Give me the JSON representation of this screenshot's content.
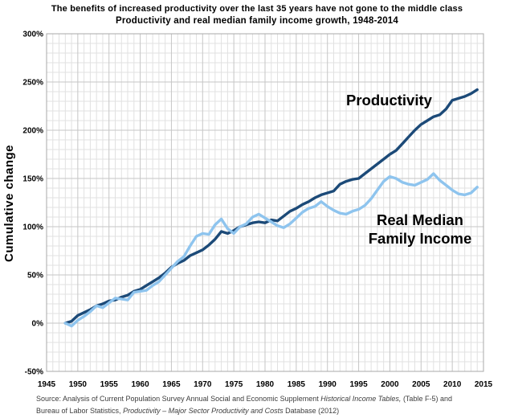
{
  "header": {
    "title_line1": "The benefits of increased productivity over the last 35 years have not gone to the middle class",
    "title_line2": "Productivity and real median family income growth, 1948-2014"
  },
  "y_axis": {
    "label": "Cumulative change",
    "tick_suffix": "%",
    "min": -50,
    "max": 300,
    "major_step": 50,
    "minor_step": 10
  },
  "x_axis": {
    "min": 1945,
    "max": 2015,
    "major_step": 5,
    "minor_step": 1
  },
  "series_labels": {
    "productivity": "Productivity",
    "income_line1": "Real Median",
    "income_line2": "Family Income"
  },
  "source": {
    "line1": [
      {
        "text": "Source:  Analysis of Current Population Survey Annual Social and Economic Supplement ",
        "italic": false
      },
      {
        "text": "Historical Income Tables,",
        "italic": true
      },
      {
        "text": " (Table F-5) and",
        "italic": false
      }
    ],
    "line2": [
      {
        "text": "Bureau of Labor Statistics, ",
        "italic": false
      },
      {
        "text": "Productivity – Major Sector Productivity and Costs",
        "italic": true
      },
      {
        "text": " Database (2012)",
        "italic": false
      }
    ]
  },
  "colors": {
    "productivity_line": "#1C4A78",
    "income_line": "#8EC4EE",
    "grid_minor": "#E1E1E1",
    "grid_major": "#C6C6C6",
    "frame": "#A9A9A9",
    "text": "#000000",
    "source_text": "#3D3D3D"
  },
  "chart_data": {
    "type": "line",
    "title": "Productivity and real median family income growth, 1948-2014",
    "xlabel": "",
    "ylabel": "Cumulative change",
    "xlim": [
      1945,
      2015
    ],
    "ylim": [
      -50,
      300
    ],
    "grid": true,
    "legend_position": "inline-annotations",
    "x": [
      1948,
      1949,
      1950,
      1951,
      1952,
      1953,
      1954,
      1955,
      1956,
      1957,
      1958,
      1959,
      1960,
      1961,
      1962,
      1963,
      1964,
      1965,
      1966,
      1967,
      1968,
      1969,
      1970,
      1971,
      1972,
      1973,
      1974,
      1975,
      1976,
      1977,
      1978,
      1979,
      1980,
      1981,
      1982,
      1983,
      1984,
      1985,
      1986,
      1987,
      1988,
      1989,
      1990,
      1991,
      1992,
      1993,
      1994,
      1995,
      1996,
      1997,
      1998,
      1999,
      2000,
      2001,
      2002,
      2003,
      2004,
      2005,
      2006,
      2007,
      2008,
      2009,
      2010,
      2011,
      2012,
      2013,
      2014
    ],
    "series": [
      {
        "name": "Productivity",
        "values": [
          0,
          2,
          8,
          11,
          14,
          18,
          20,
          23,
          24,
          27,
          29,
          33,
          35,
          39,
          43,
          47,
          52,
          58,
          62,
          65,
          70,
          73,
          76,
          81,
          87,
          95,
          93,
          96,
          100,
          102,
          104,
          105,
          104,
          107,
          106,
          111,
          116,
          119,
          123,
          126,
          130,
          133,
          135,
          137,
          144,
          147,
          149,
          150,
          155,
          160,
          165,
          170,
          175,
          179,
          186,
          193,
          200,
          206,
          210,
          214,
          216,
          222,
          231,
          233,
          235,
          238,
          242
        ]
      },
      {
        "name": "Real Median Family Income",
        "values": [
          0,
          -3,
          3,
          7,
          12,
          18,
          16,
          21,
          26,
          25,
          24,
          32,
          33,
          34,
          39,
          43,
          50,
          57,
          64,
          69,
          80,
          90,
          93,
          92,
          102,
          108,
          98,
          93,
          100,
          103,
          110,
          113,
          109,
          105,
          101,
          99,
          103,
          109,
          115,
          119,
          121,
          126,
          121,
          117,
          114,
          113,
          116,
          118,
          122,
          129,
          138,
          147,
          152,
          150,
          146,
          144,
          143,
          146,
          149,
          155,
          148,
          143,
          138,
          134,
          133,
          135,
          141
        ]
      }
    ]
  }
}
